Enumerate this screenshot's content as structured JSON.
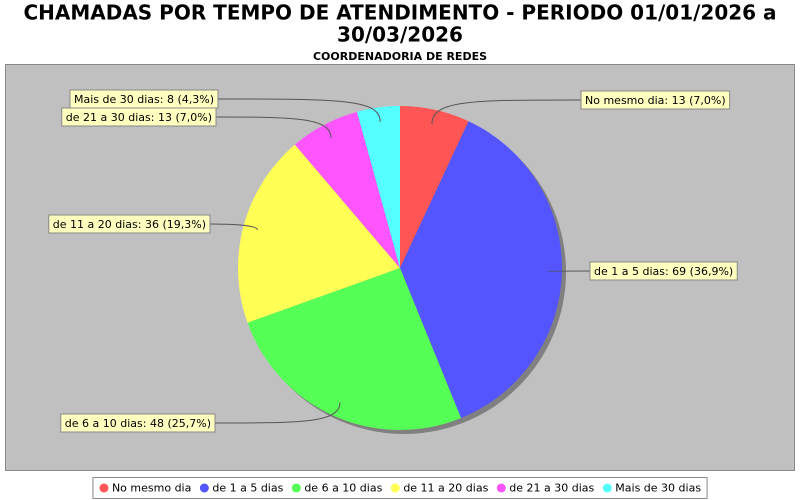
{
  "chart_data": {
    "type": "pie",
    "title": [
      "CHAMADAS POR TEMPO DE ATENDIMENTO - PERIODO 01/01/2026 a",
      "30/03/2026"
    ],
    "subtitle": "COORDENADORIA DE REDES",
    "categories": [
      "No mesmo dia",
      "de 1 a 5 dias",
      "de 6 a 10 dias",
      "de 11 a 20 dias",
      "de 21 a 30 dias",
      "Mais de 30 dias"
    ],
    "values": [
      13,
      69,
      48,
      36,
      13,
      8
    ],
    "value_labels": [
      "No mesmo dia: 13 (7,0%)",
      "de 1 a 5 dias: 69 (36,9%)",
      "de 6 a 10 dias: 48 (25,7%)",
      "de 11 a 20 dias: 36 (19,3%)",
      "de 21 a 30 dias: 13 (7,0%)",
      "Mais de 30 dias: 8 (4,3%)"
    ],
    "colors": [
      "#ff5555",
      "#5555ff",
      "#55ff55",
      "#ffff55",
      "#ff55ff",
      "#55ffff"
    ],
    "legend": "bottom"
  }
}
